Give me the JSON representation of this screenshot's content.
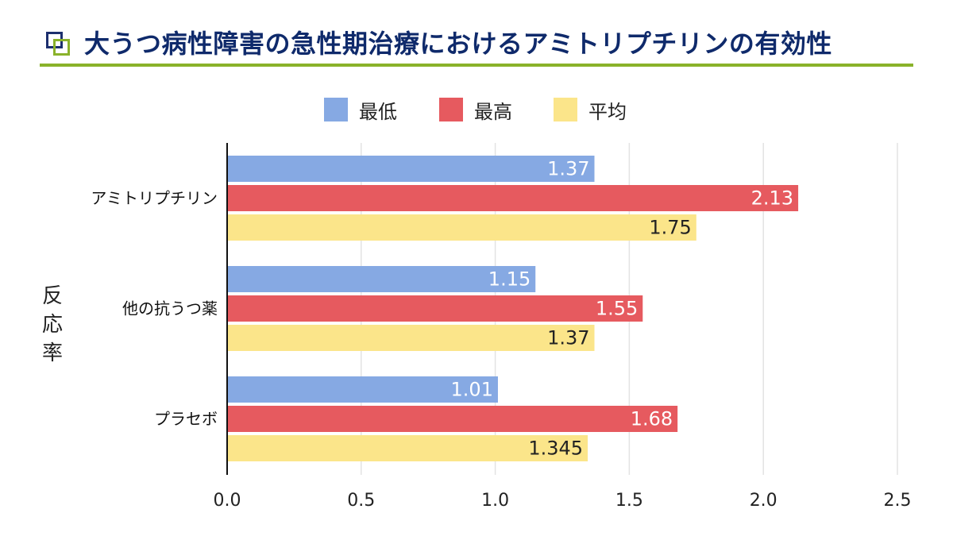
{
  "title": "大うつ病性障害の急性期治療におけるアミトリプチリンの有効性",
  "title_icon": "overlapping-squares-icon",
  "colors": {
    "title": "#0f2a6b",
    "accent_green": "#8ab22a",
    "icon_navy": "#1c2f6e",
    "min": "#86a9e3",
    "max": "#e65a5f",
    "avg": "#fbe58a"
  },
  "chart_data": {
    "type": "bar",
    "orientation": "horizontal",
    "title": "大うつ病性障害の急性期治療におけるアミトリプチリンの有効性",
    "ylabel": "反応率",
    "xlabel": "",
    "categories": [
      "アミトリプチリン",
      "他の抗うつ薬",
      "プラセボ"
    ],
    "series": [
      {
        "name": "最低",
        "color": "#86a9e3",
        "label_color": "#ffffff",
        "values": [
          1.37,
          1.15,
          1.01
        ]
      },
      {
        "name": "最高",
        "color": "#e65a5f",
        "label_color": "#ffffff",
        "values": [
          2.13,
          1.55,
          1.68
        ]
      },
      {
        "name": "平均",
        "color": "#fbe58a",
        "label_color": "#222222",
        "values": [
          1.75,
          1.37,
          1.345
        ]
      }
    ],
    "xlim": [
      0,
      2.5
    ],
    "xticks": [
      "0.0",
      "0.5",
      "1.0",
      "1.5",
      "2.0",
      "2.5"
    ],
    "grid": true,
    "legend_position": "top-center"
  }
}
